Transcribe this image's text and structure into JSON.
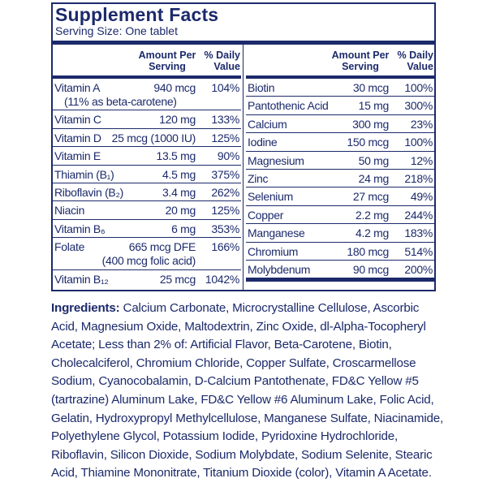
{
  "header": {
    "title": "Supplement Facts",
    "serving_size": "Serving Size: One tablet"
  },
  "columns": {
    "amount": "Amount Per Serving",
    "daily_value": "% Daily Value"
  },
  "left_rows": [
    {
      "name": "Vitamin A",
      "amount": "940 mcg",
      "dv": "104%",
      "note": "(11% as beta-carotene)"
    },
    {
      "name": "Vitamin C",
      "amount": "120 mg",
      "dv": "133%"
    },
    {
      "name": "Vitamin D",
      "amount": "25 mcg (1000 IU)",
      "dv": "125%"
    },
    {
      "name": "Vitamin E",
      "amount": "13.5 mg",
      "dv": "90%"
    },
    {
      "name": "Thiamin (B₁)",
      "amount": "4.5 mg",
      "dv": "375%"
    },
    {
      "name": "Riboflavin (B₂)",
      "amount": "3.4 mg",
      "dv": "262%"
    },
    {
      "name": "Niacin",
      "amount": "20 mg",
      "dv": "125%"
    },
    {
      "name": "Vitamin B₆",
      "amount": "6 mg",
      "dv": "353%"
    },
    {
      "name": "Folate",
      "amount": "665 mcg DFE",
      "dv": "166%",
      "amount_note": "(400 mcg folic acid)"
    },
    {
      "name": "Vitamin B₁₂",
      "amount": "25 mcg",
      "dv": "1042%"
    }
  ],
  "right_rows": [
    {
      "name": "Biotin",
      "amount": "30 mcg",
      "dv": "100%"
    },
    {
      "name": "Pantothenic Acid",
      "amount": "15 mg",
      "dv": "300%"
    },
    {
      "name": "Calcium",
      "amount": "300 mg",
      "dv": "23%"
    },
    {
      "name": "Iodine",
      "amount": "150 mcg",
      "dv": "100%"
    },
    {
      "name": "Magnesium",
      "amount": "50 mg",
      "dv": "12%"
    },
    {
      "name": "Zinc",
      "amount": "24 mg",
      "dv": "218%"
    },
    {
      "name": "Selenium",
      "amount": "27 mcg",
      "dv": "49%"
    },
    {
      "name": "Copper",
      "amount": "2.2 mg",
      "dv": "244%"
    },
    {
      "name": "Manganese",
      "amount": "4.2 mg",
      "dv": "183%"
    },
    {
      "name": "Chromium",
      "amount": "180 mcg",
      "dv": "514%"
    },
    {
      "name": "Molybdenum",
      "amount": "90 mcg",
      "dv": "200%"
    }
  ],
  "ingredients": {
    "label": "Ingredients:",
    "text": "Calcium Carbonate, Microcrystalline Cellulose, Ascorbic Acid, Magnesium Oxide, Maltodextrin, Zinc Oxide, dl-Alpha-Tocopheryl Acetate; Less than 2% of: Artificial Flavor, Beta-Carotene, Biotin, Cholecalciferol, Chromium Chloride, Copper Sulfate, Croscarmellose Sodium, Cyanocobalamin, D-Calcium Pantothenate, FD&C Yellow #5 (tartrazine) Aluminum Lake, FD&C Yellow #6 Aluminum Lake, Folic Acid, Gelatin, Hydroxypropyl Methylcellulose, Manganese Sulfate, Niacinamide, Polyethylene Glycol, Potassium Iodide, Pyridoxine Hydrochloride, Riboflavin, Silicon Dioxide, Sodium Molybdate, Sodium Selenite, Stearic Acid, Thiamine Mononitrate, Titanium Dioxide (color), Vitamin A Acetate."
  }
}
